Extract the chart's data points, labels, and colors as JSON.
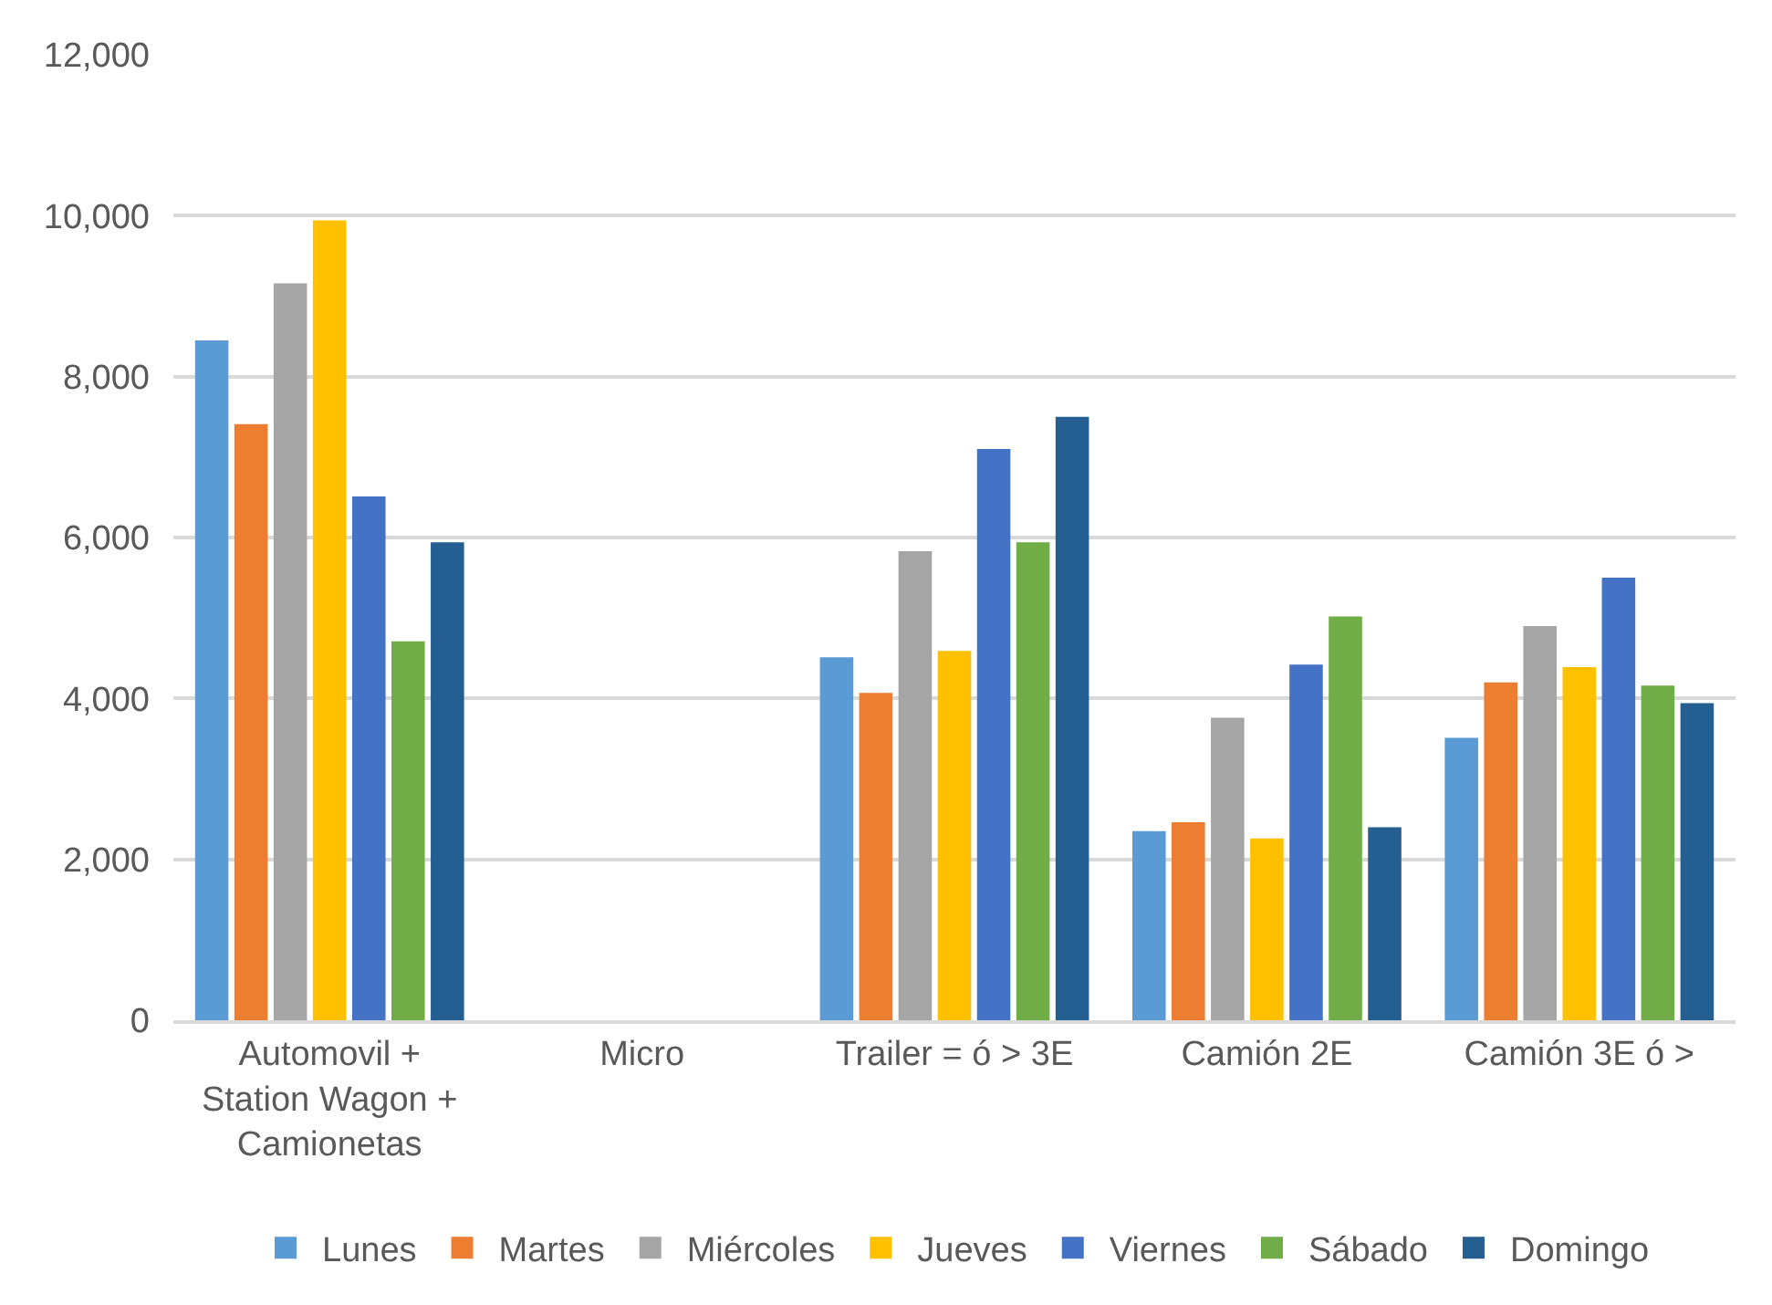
{
  "chart_data": {
    "type": "bar",
    "categories": [
      "Automovil + Station Wagon + Camionetas",
      "Micro",
      "Trailer = ó > 3E",
      "Camión 2E",
      "Camión 3E ó >"
    ],
    "series": [
      {
        "name": "Lunes",
        "color": "#5b9bd5",
        "values": [
          8450,
          0,
          4510,
          2350,
          3510
        ]
      },
      {
        "name": "Martes",
        "color": "#ed7d31",
        "values": [
          7410,
          0,
          4070,
          2460,
          4200
        ]
      },
      {
        "name": "Miércoles",
        "color": "#a5a5a5",
        "values": [
          9160,
          0,
          5830,
          3760,
          4900
        ]
      },
      {
        "name": "Jueves",
        "color": "#ffc000",
        "values": [
          9940,
          0,
          4590,
          2260,
          4390
        ]
      },
      {
        "name": "Viernes",
        "color": "#4472c4",
        "values": [
          6510,
          0,
          7100,
          4420,
          5500
        ]
      },
      {
        "name": "Sábado",
        "color": "#70ad47",
        "values": [
          4710,
          0,
          5940,
          5020,
          4160
        ]
      },
      {
        "name": "Domingo",
        "color": "#255e91",
        "values": [
          5940,
          0,
          7500,
          2400,
          3940
        ]
      }
    ],
    "ylim": [
      0,
      12000
    ],
    "yticks": [
      {
        "value": 0,
        "label": "0"
      },
      {
        "value": 2000,
        "label": "2,000"
      },
      {
        "value": 4000,
        "label": "4,000"
      },
      {
        "value": 6000,
        "label": "6,000"
      },
      {
        "value": 8000,
        "label": "8,000"
      },
      {
        "value": 10000,
        "label": "10,000"
      },
      {
        "value": 12000,
        "label": "12,000"
      }
    ],
    "grid": "y",
    "legend": "bottom"
  }
}
